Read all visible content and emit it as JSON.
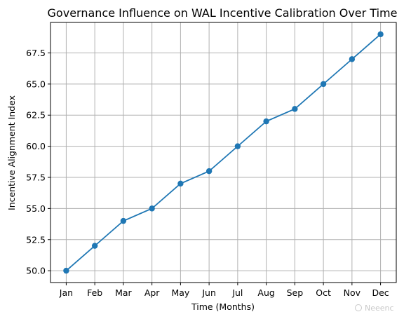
{
  "chart_data": {
    "type": "line",
    "title": "Governance Influence on WAL Incentive Calibration Over Time",
    "xlabel": "Time (Months)",
    "ylabel": "Incentive Alignment Index",
    "categories": [
      "Jan",
      "Feb",
      "Mar",
      "Apr",
      "May",
      "Jun",
      "Jul",
      "Aug",
      "Sep",
      "Oct",
      "Nov",
      "Dec"
    ],
    "series": [
      {
        "values": [
          50,
          52,
          54,
          55,
          57,
          58,
          60,
          62,
          63,
          65,
          67,
          69
        ],
        "color": "#1f77b4",
        "marker": "circle"
      }
    ],
    "ylim": [
      49.05,
      69.95
    ],
    "yticks": [
      "50.0",
      "52.5",
      "55.0",
      "57.5",
      "60.0",
      "62.5",
      "65.0",
      "67.5"
    ],
    "grid": true,
    "legend": "none"
  },
  "watermark": "Neeenc"
}
